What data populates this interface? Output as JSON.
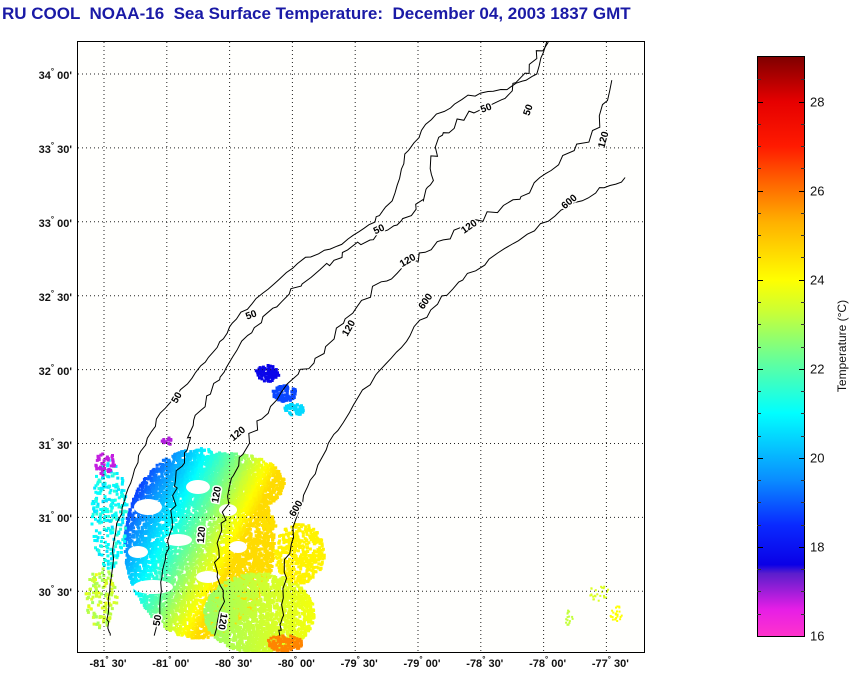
{
  "title": "RU COOL  NOAA-16  Sea Surface Temperature:  December 04, 2003 1837 GMT",
  "map": {
    "lat_labels": [
      {
        "deg": "34",
        "min": "00'",
        "value": 34.0
      },
      {
        "deg": "33",
        "min": "30'",
        "value": 33.5
      },
      {
        "deg": "33",
        "min": "00'",
        "value": 33.0
      },
      {
        "deg": "32",
        "min": "30'",
        "value": 32.5
      },
      {
        "deg": "32",
        "min": "00'",
        "value": 32.0
      },
      {
        "deg": "31",
        "min": "30'",
        "value": 31.5
      },
      {
        "deg": "31",
        "min": "00'",
        "value": 31.0
      },
      {
        "deg": "30",
        "min": "30'",
        "value": 30.5
      }
    ],
    "lon_labels": [
      {
        "deg": "-81",
        "min": "30'",
        "value": -81.5
      },
      {
        "deg": "-81",
        "min": "00'",
        "value": -81.0
      },
      {
        "deg": "-80",
        "min": "30'",
        "value": -80.5
      },
      {
        "deg": "-80",
        "min": "00'",
        "value": -80.0
      },
      {
        "deg": "-79",
        "min": "30'",
        "value": -79.5
      },
      {
        "deg": "-79",
        "min": "00'",
        "value": -79.0
      },
      {
        "deg": "-78",
        "min": "30'",
        "value": -78.5
      },
      {
        "deg": "-78",
        "min": "00'",
        "value": -78.0
      },
      {
        "deg": "-77",
        "min": "30'",
        "value": -77.5
      }
    ],
    "bathymetry_contours": [
      {
        "depth_m": 50,
        "labels": [
          "50",
          "50",
          "50",
          "50",
          "50",
          "50"
        ]
      },
      {
        "depth_m": 120,
        "labels": [
          "120",
          "120",
          "120",
          "120",
          "120",
          "120",
          "120",
          "120"
        ]
      },
      {
        "depth_m": 600,
        "labels": [
          "600",
          "600",
          "600"
        ]
      }
    ],
    "extent": {
      "lon_min": -81.55,
      "lon_max": -77.35,
      "lat_min": 30.2,
      "lat_max": 34.2
    }
  },
  "colorbar": {
    "title": "Temperature (°C)",
    "min": 16,
    "max": 29,
    "ticks": [
      "16",
      "18",
      "20",
      "22",
      "24",
      "26",
      "28"
    ],
    "stops": [
      {
        "t": 16,
        "color": "#ff33cc"
      },
      {
        "t": 16.6,
        "color": "#e61ee6"
      },
      {
        "t": 17.4,
        "color": "#5a1ecc"
      },
      {
        "t": 17.6,
        "color": "#0a00e6"
      },
      {
        "t": 18.5,
        "color": "#0a2aff"
      },
      {
        "t": 19.5,
        "color": "#0a8cff"
      },
      {
        "t": 21,
        "color": "#00ffff"
      },
      {
        "t": 22.2,
        "color": "#66ff99"
      },
      {
        "t": 23.3,
        "color": "#ccff33"
      },
      {
        "t": 24,
        "color": "#ffff00"
      },
      {
        "t": 25.3,
        "color": "#ffb000"
      },
      {
        "t": 26.3,
        "color": "#ff5a00"
      },
      {
        "t": 27,
        "color": "#ff1a00"
      },
      {
        "t": 28,
        "color": "#e60000"
      },
      {
        "t": 29,
        "color": "#800000"
      }
    ]
  },
  "colors": {
    "title": "#1a1aa6",
    "frame": "#000000",
    "contour": "#000000"
  }
}
